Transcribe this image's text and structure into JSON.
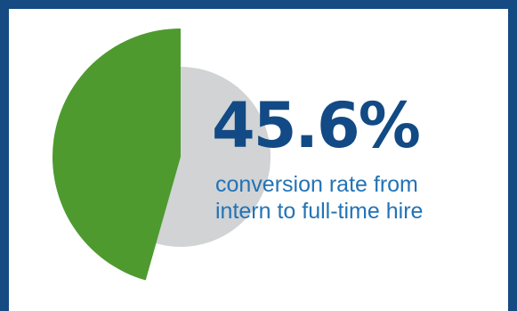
{
  "stat": {
    "value": "45.6%",
    "caption_lines": [
      "conversion rate from",
      "intern to full-time hire"
    ]
  },
  "chart_data": {
    "type": "pie",
    "slices": [
      {
        "value": 45.6,
        "color": "#4e9a2f"
      },
      {
        "value": 54.4,
        "color": "#d1d3d4"
      }
    ]
  },
  "colors": {
    "frame": "#154a82",
    "value_text": "#124a85",
    "caption_text": "#2373b5"
  }
}
